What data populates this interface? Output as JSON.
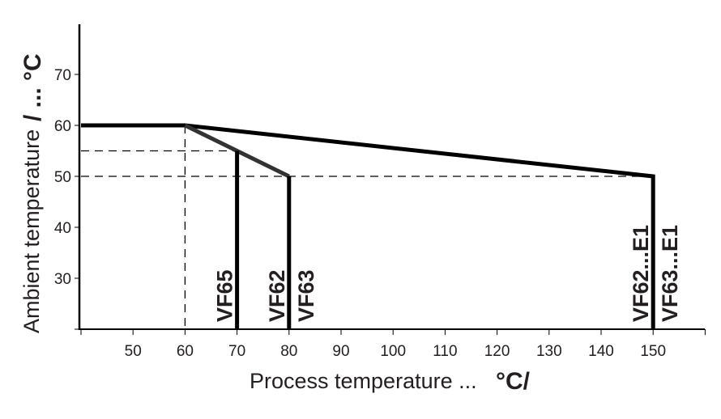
{
  "chart_data": {
    "type": "line",
    "xlabel": "Process temperature  ...",
    "xunit": "°C/",
    "ylabel": "Ambient temperature",
    "yunit": "/ ... °C",
    "xlim": [
      40,
      160
    ],
    "ylim": [
      20,
      82
    ],
    "xticks": [
      50,
      60,
      70,
      80,
      90,
      100,
      110,
      120,
      130,
      140,
      150
    ],
    "yticks": [
      30,
      40,
      50,
      60,
      70
    ],
    "grid": false,
    "colors": {
      "main": "#000000",
      "secondary": "#333333",
      "text": "#231f20"
    },
    "lines": [
      {
        "id": "e1-curve",
        "color": "#000000",
        "points": [
          [
            40,
            60
          ],
          [
            60,
            60
          ],
          [
            150,
            50
          ],
          [
            150,
            20
          ]
        ]
      },
      {
        "id": "vf62-vf63-derating",
        "color": "#333333",
        "points": [
          [
            60,
            60
          ],
          [
            80,
            50
          ]
        ]
      },
      {
        "id": "vf65-limit",
        "color": "#000000",
        "points": [
          [
            70,
            55
          ],
          [
            70,
            20
          ]
        ]
      },
      {
        "id": "vf62-vf63-limit",
        "color": "#000000",
        "points": [
          [
            80,
            50
          ],
          [
            80,
            20
          ]
        ]
      }
    ],
    "dashed": [
      [
        [
          40,
          55
        ],
        [
          70,
          55
        ]
      ],
      [
        [
          40,
          50
        ],
        [
          150,
          50
        ]
      ],
      [
        [
          60,
          60
        ],
        [
          60,
          20
        ]
      ]
    ],
    "labels": [
      {
        "text": "VF65",
        "x": 70,
        "side": "left"
      },
      {
        "text": "VF62",
        "x": 80,
        "side": "left"
      },
      {
        "text": "VF63",
        "x": 80,
        "side": "right"
      },
      {
        "text": "VF62...E1",
        "x": 150,
        "side": "left"
      },
      {
        "text": "VF63...E1",
        "x": 150,
        "side": "right"
      }
    ]
  }
}
